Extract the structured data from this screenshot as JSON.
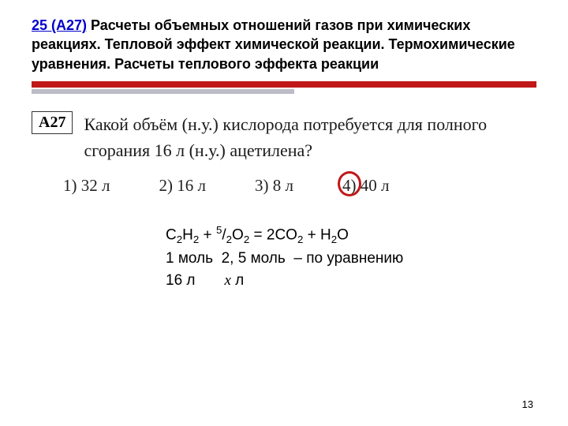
{
  "title": {
    "link_part": "25 (А27)",
    "rest": " Расчеты объемных отношений газов при химических реакциях. Тепловой эффект химической реакции. Термохимические уравнения. Расчеты теплового эффекта реакции"
  },
  "divider": {
    "bar_color": "#c01818",
    "shadow_color": "#bcbcc6"
  },
  "question": {
    "badge": "А27",
    "text": "Какой объём (н.у.) кислорода потребуется для полного сгорания 16 л (н.у.) ацетилена?"
  },
  "options": {
    "items": [
      {
        "num": "1)",
        "val": "32 л"
      },
      {
        "num": "2)",
        "val": "16 л"
      },
      {
        "num": "3)",
        "val": "8 л"
      },
      {
        "num": "4)",
        "val": "40 л"
      }
    ],
    "circled_index": 3,
    "circle_color": "#c01818"
  },
  "work": {
    "eq_lhs1": "C",
    "eq_lhs1_sub": "2",
    "eq_lhs2": "H",
    "eq_lhs2_sub": "2",
    "plus1": " + ",
    "coef_sup": "5",
    "coef_sub": "2",
    "slash": "/",
    "o2": "O",
    "o2_sub": "2",
    "eq": " = ",
    "rhs1_coef": "2",
    "rhs1": "CO",
    "rhs1_sub": "2",
    "plus2": " + ",
    "rhs2": "H",
    "rhs2_sub": "2",
    "rhs2b": "O",
    "line2_a": "1 моль",
    "line2_b": "2, 5 моль",
    "line2_c": "– по уравнению",
    "line3_a": "16 л",
    "line3_x": "x",
    "line3_b": " л"
  },
  "page_number": "13"
}
